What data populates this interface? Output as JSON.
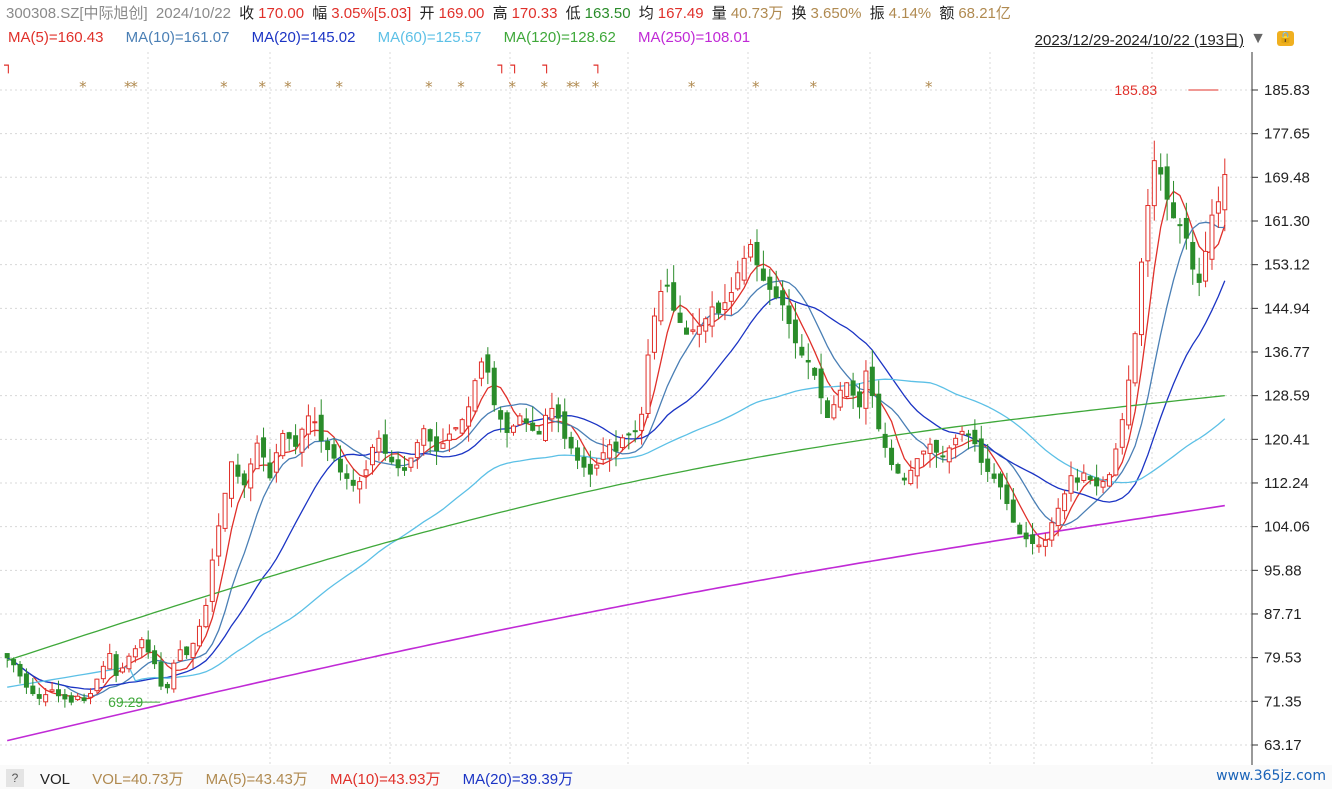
{
  "quote": {
    "code": "300308.SZ[中际旭创]",
    "date": "2024/10/22",
    "close_label": "收",
    "close": "170.00",
    "change_label": "幅",
    "change": "3.05%[5.03]",
    "open_label": "开",
    "open": "169.00",
    "high_label": "高",
    "high": "170.33",
    "low_label": "低",
    "low": "163.50",
    "avg_label": "均",
    "avg": "167.49",
    "volume_label": "量",
    "volume": "40.73万",
    "turnover_label": "换",
    "turnover": "3.650%",
    "amplitude_label": "振",
    "amplitude": "4.14%",
    "amount_label": "额",
    "amount": "68.21亿"
  },
  "ma_legend": [
    {
      "text": "MA(5)=160.43",
      "color": "#e0302a"
    },
    {
      "text": "MA(10)=161.07",
      "color": "#4a7fb5"
    },
    {
      "text": "MA(20)=145.02",
      "color": "#1b34c4"
    },
    {
      "text": "MA(60)=125.57",
      "color": "#5cc0e6"
    },
    {
      "text": "MA(120)=128.62",
      "color": "#3fa83a"
    },
    {
      "text": "MA(250)=108.01",
      "color": "#c02ad6"
    }
  ],
  "range": "2023/12/29-2024/10/22 (193日)",
  "range_arrow_icon": "triangle-down-icon",
  "lock_icon": "lock-icon",
  "vol_bar": {
    "help": "?",
    "vol_label": "VOL",
    "vol": "VOL=40.73万",
    "ma5": "MA(5)=43.43万",
    "ma10": "MA(10)=43.93万",
    "ma20": "MA(20)=39.39万"
  },
  "watermark": "www.365jz.com",
  "colors": {
    "up": "#e0302a",
    "down": "#2a8c2a",
    "grid": "#d8d8d8"
  },
  "chart_data": {
    "type": "candlestick",
    "ylim": [
      63.17,
      185.83
    ],
    "y_ticks": [
      "185.83",
      "177.65",
      "169.48",
      "161.30",
      "153.12",
      "144.94",
      "136.77",
      "128.59",
      "120.41",
      "112.24",
      "104.06",
      "95.88",
      "87.71",
      "79.53",
      "71.35",
      "63.17"
    ],
    "annotations": [
      {
        "text": "185.83",
        "type": "max",
        "index": 189
      },
      {
        "text": "69.29",
        "type": "min",
        "index": 17
      }
    ],
    "star_markers_at": [
      12,
      19,
      20,
      34,
      40,
      44,
      52,
      66,
      71,
      79,
      84,
      88,
      89,
      92,
      107,
      117,
      126,
      144
    ],
    "bracket_markers_at": [
      0,
      77,
      79,
      84,
      92
    ],
    "close": [
      79.5,
      78.2,
      76.1,
      74.0,
      72.8,
      71.9,
      72.6,
      73.5,
      72.4,
      71.8,
      71.2,
      72.3,
      71.5,
      72.8,
      75.5,
      77.9,
      80.3,
      76.2,
      77.6,
      79.8,
      81.2,
      82.9,
      80.6,
      78.4,
      74.2,
      73.9,
      78.5,
      81.0,
      80.1,
      82.2,
      85.4,
      89.3,
      97.8,
      104.2,
      110.3,
      116.2,
      113.5,
      111.9,
      115.8,
      119.7,
      117.1,
      113.2,
      117.9,
      121.5,
      120.6,
      119.1,
      122.3,
      124.8,
      123.7,
      120.2,
      118.5,
      116.9,
      114.3,
      113.1,
      111.8,
      112.5,
      114.7,
      118.9,
      120.6,
      117.8,
      116.2,
      115.1,
      114.6,
      116.9,
      119.8,
      122.4,
      120.1,
      118.3,
      119.6,
      121.4,
      122.6,
      124.1,
      126.5,
      131.4,
      134.9,
      133.0,
      126.9,
      124.2,
      121.7,
      122.9,
      124.8,
      123.5,
      122.1,
      121.4,
      124.9,
      126.2,
      124.4,
      120.6,
      118.8,
      116.5,
      115.2,
      113.9,
      115.6,
      117.9,
      119.4,
      118.2,
      120.7,
      121.3,
      122.0,
      125.1,
      136.2,
      143.5,
      148.1,
      149.2,
      144.6,
      142.3,
      140.1,
      140.9,
      141.6,
      143.0,
      145.2,
      144.1,
      146.0,
      147.9,
      151.6,
      154.3,
      156.9,
      153.1,
      150.2,
      148.5,
      147.0,
      145.6,
      142.1,
      138.5,
      136.2,
      134.9,
      132.4,
      128.2,
      124.5,
      126.9,
      129.6,
      131.0,
      128.7,
      126.5,
      133.2,
      128.6,
      122.4,
      118.9,
      115.7,
      114.1,
      112.8,
      114.6,
      116.8,
      118.2,
      119.5,
      118.0,
      117.3,
      118.8,
      120.6,
      121.9,
      121.2,
      119.6,
      116.1,
      114.4,
      113.1,
      111.5,
      108.4,
      104.9,
      102.7,
      101.8,
      100.9,
      100.6,
      101.5,
      104.8,
      107.5,
      110.2,
      113.6,
      112.4,
      114.1,
      112.9,
      111.7,
      112.5,
      113.8,
      118.6,
      124.1,
      131.5,
      140.2,
      153.6,
      164.2,
      172.6,
      170.1,
      165.4,
      161.9,
      160.5,
      158.1,
      152.3,
      149.8,
      155.6,
      162.4,
      164.9,
      170.0
    ]
  }
}
